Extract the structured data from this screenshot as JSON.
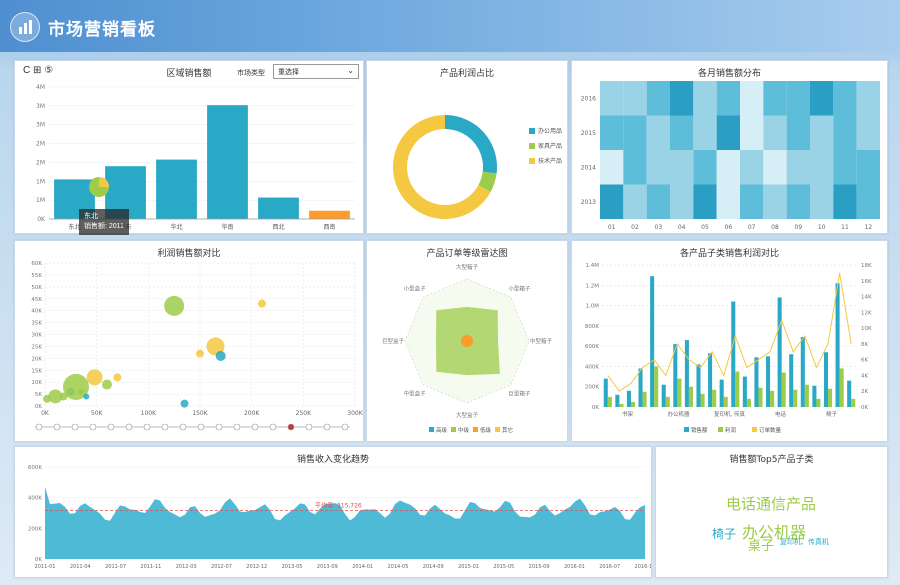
{
  "header": {
    "title": "市场营销看板"
  },
  "toolbar": {
    "refresh_label": "C",
    "grid_label": "⊞",
    "filter_label": "⑤"
  },
  "colors": {
    "teal": "#2aa9c6",
    "lime": "#9ccc4a",
    "yellow": "#f5c842",
    "orange": "#ff9b2b",
    "red": "#c0392b"
  },
  "filter": {
    "label": "市场类型",
    "value": "重选择"
  },
  "tooltip": {
    "line1": "东北",
    "line2": "销售额: 2011"
  },
  "charts": {
    "region_sales": {
      "title": "区域销售额",
      "type": "bar",
      "categories": [
        "东北",
        "华东",
        "华北",
        "华南",
        "西北",
        "西南"
      ],
      "values": [
        1.2,
        1.6,
        1.8,
        3.45,
        0.65,
        0.25
      ],
      "yticks": [
        "0K",
        "1M",
        "1M",
        "2M",
        "2M",
        "3M",
        "3M",
        "4M"
      ],
      "ylim": [
        0,
        4
      ]
    },
    "product_share": {
      "title": "产品利润占比",
      "type": "pie",
      "categories": [
        "办公用品",
        "家具产品",
        "技术产品"
      ],
      "values": [
        27,
        6,
        67
      ]
    },
    "heatmap": {
      "title": "各月销售额分布",
      "type": "heatmap",
      "rows": [
        "2016",
        "2015",
        "2014",
        "2013"
      ],
      "columns": [
        "01",
        "02",
        "03",
        "04",
        "05",
        "06",
        "07",
        "08",
        "09",
        "10",
        "11",
        "12"
      ],
      "values": [
        [
          0.5,
          0.4,
          0.7,
          0.9,
          0.5,
          0.6,
          0.3,
          0.6,
          0.7,
          0.8,
          0.6,
          0.4
        ],
        [
          0.6,
          0.7,
          0.5,
          0.6,
          0.4,
          0.8,
          0.3,
          0.5,
          0.6,
          0.4,
          0.7,
          0.5
        ],
        [
          0.3,
          0.6,
          0.4,
          0.5,
          0.7,
          0.2,
          0.5,
          0.3,
          0.4,
          0.5,
          0.6,
          0.7
        ],
        [
          0.8,
          0.5,
          0.6,
          0.4,
          0.9,
          0.3,
          0.6,
          0.5,
          0.7,
          0.5,
          0.8,
          0.6
        ]
      ]
    },
    "scatter": {
      "title": "利润销售额对比",
      "type": "scatter",
      "yticks": [
        "0K",
        "5K",
        "10K",
        "15K",
        "20K",
        "25K",
        "30K",
        "35K",
        "40K",
        "45K",
        "50K",
        "55K",
        "60K"
      ],
      "xticks": [
        "0K",
        "50K",
        "100K",
        "150K",
        "200K",
        "250K",
        "300K"
      ],
      "points": [
        {
          "x": 2,
          "y": 3,
          "r": 4,
          "c": "#9ccc4a"
        },
        {
          "x": 10,
          "y": 4,
          "r": 7,
          "c": "#9ccc4a"
        },
        {
          "x": 18,
          "y": 4,
          "r": 4,
          "c": "#9ccc4a"
        },
        {
          "x": 25,
          "y": 6,
          "r": 4,
          "c": "#2aa9c6"
        },
        {
          "x": 30,
          "y": 8,
          "r": 13,
          "c": "#9ccc4a"
        },
        {
          "x": 35,
          "y": 6,
          "r": 3,
          "c": "#9ccc4a"
        },
        {
          "x": 40,
          "y": 4,
          "r": 3,
          "c": "#2aa9c6"
        },
        {
          "x": 48,
          "y": 12,
          "r": 8,
          "c": "#f5c842"
        },
        {
          "x": 60,
          "y": 9,
          "r": 5,
          "c": "#9ccc4a"
        },
        {
          "x": 70,
          "y": 12,
          "r": 4,
          "c": "#f5c842"
        },
        {
          "x": 125,
          "y": 42,
          "r": 10,
          "c": "#9ccc4a"
        },
        {
          "x": 135,
          "y": 1,
          "r": 4,
          "c": "#2aa9c6"
        },
        {
          "x": 150,
          "y": 22,
          "r": 4,
          "c": "#f5c842"
        },
        {
          "x": 165,
          "y": 25,
          "r": 9,
          "c": "#f5c842"
        },
        {
          "x": 170,
          "y": 21,
          "r": 5,
          "c": "#2aa9c6"
        },
        {
          "x": 210,
          "y": 43,
          "r": 4,
          "c": "#f5c842"
        }
      ]
    },
    "radar": {
      "title": "产品订单等级雷达图",
      "axes": [
        "大型箱子",
        "小型箱子",
        "中型箱子",
        "巨型箱子",
        "大型盒子",
        "中型盒子",
        "巨型盒子",
        "小型盒子"
      ],
      "legend": [
        "高级",
        "中级",
        "低级",
        "其它"
      ]
    },
    "combo": {
      "title": "各产品子类销售利润对比",
      "type": "bar+line",
      "categories": [
        "书架",
        "办公机器",
        "复印机, 传真",
        "电话",
        "椅子"
      ],
      "yticks_left": [
        "0K",
        "200K",
        "400K",
        "600K",
        "800K",
        "1.0M",
        "1.2M",
        "1.4M"
      ],
      "yticks_right": [
        "0K",
        "2K",
        "4K",
        "6K",
        "8K",
        "10K",
        "12K",
        "14K",
        "16K",
        "18K"
      ],
      "sales": [
        2.8,
        1.2,
        1.6,
        3.8,
        12.9,
        2.2,
        6.2,
        6.6,
        4.2,
        5.3,
        2.7,
        10.4,
        3.0,
        4.9,
        5.0,
        10.8,
        5.2,
        6.9,
        2.1,
        5.4,
        12.2,
        2.6
      ],
      "profit": [
        1.0,
        0.3,
        0.5,
        1.5,
        4.0,
        1.0,
        2.8,
        2.0,
        1.3,
        1.7,
        1.0,
        3.5,
        0.8,
        1.9,
        1.6,
        3.4,
        1.7,
        2.2,
        0.8,
        1.8,
        3.8,
        0.8
      ],
      "orders": [
        4,
        2,
        3,
        5,
        6,
        4,
        8,
        6,
        5,
        7,
        4,
        9,
        5,
        6,
        7,
        11,
        7,
        9,
        5,
        8,
        17,
        8
      ],
      "legend": [
        "销售额",
        "利润",
        "订单数量"
      ]
    },
    "timeline": {
      "title": "销售收入变化趋势",
      "type": "area",
      "yticks": [
        "0K",
        "200K",
        "400K",
        "600K"
      ],
      "xticks": [
        "2011-01",
        "2011-04",
        "2011-07",
        "2011-11",
        "2012-03",
        "2012-07",
        "2012-12",
        "2013-05",
        "2013-09",
        "2014-01",
        "2014-05",
        "2014-09",
        "2015-01",
        "2015-05",
        "2015-09",
        "2016-01",
        "2016-07",
        "2016-12"
      ],
      "avg_label": "平均值: 315,726",
      "avg_value": 315726
    },
    "wordcloud": {
      "title": "销售额Top5产品子类",
      "words": [
        {
          "text": "电话通信产品",
          "size": 15,
          "c": "#9ccc4a"
        },
        {
          "text": "椅子",
          "size": 12,
          "c": "#2aa9c6"
        },
        {
          "text": "办公机器",
          "size": 16,
          "c": "#9ccc4a"
        },
        {
          "text": "桌子",
          "size": 13,
          "c": "#9ccc4a"
        },
        {
          "text": "复印机、传真机",
          "size": 7,
          "c": "#2aa9c6"
        }
      ]
    }
  },
  "chart_data": [
    {
      "type": "bar",
      "title": "区域销售额",
      "categories": [
        "东北",
        "华东",
        "华北",
        "华南",
        "西北",
        "西南"
      ],
      "values": [
        1.2,
        1.6,
        1.8,
        3.45,
        0.65,
        0.25
      ],
      "ylabel": "",
      "ylim": [
        0,
        4
      ]
    },
    {
      "type": "pie",
      "title": "产品利润占比",
      "categories": [
        "办公用品",
        "家具产品",
        "技术产品"
      ],
      "values": [
        27,
        6,
        67
      ]
    }
  ]
}
